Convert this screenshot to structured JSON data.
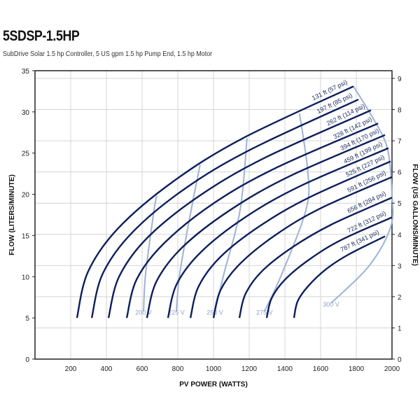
{
  "title": "5SDSP-1.5HP",
  "subtitle": "SubDrive Solar 1.5 hp Controller, 5 US gpm 1.5 hp Pump End, 1.5 hp Motor",
  "colors": {
    "curve": "#0d1f5c",
    "voltage": "#9fb2d4",
    "grid": "#d4d4d4"
  },
  "chart_data": {
    "type": "line",
    "title": "5SDSP-1.5HP",
    "xlabel": "PV POWER (WATTS)",
    "ylabel": "FLOW (LITERS/MINUTE)",
    "y2label": "FLOW (US GALLONS/MINUTE)",
    "xlim": [
      0,
      2000
    ],
    "ylim": [
      0,
      35
    ],
    "y2lim": [
      0,
      9.25
    ],
    "xticks": [
      "200",
      "400",
      "600",
      "800",
      "1000",
      "1200",
      "1400",
      "1600",
      "1800",
      "2000"
    ],
    "yticks": [
      "0",
      "5",
      "10",
      "15",
      "20",
      "25",
      "30",
      "35"
    ],
    "y2ticks": [
      "0",
      "1",
      "2",
      "3",
      "4",
      "5",
      "6",
      "7",
      "8",
      "9"
    ],
    "grid": true,
    "head_curves": [
      {
        "name": "131 ft (57 psi)",
        "x": [
          235,
          297,
          467,
          777,
          1164,
          1784
        ],
        "y": [
          5,
          10.6,
          15.9,
          21.6,
          26.8,
          33.1
        ]
      },
      {
        "name": "197 ft (85 psi)",
        "x": [
          318,
          378,
          542,
          841,
          1214,
          1812
        ],
        "y": [
          5,
          10.3,
          15.3,
          20.7,
          25.5,
          31.5
        ]
      },
      {
        "name": "262 ft (114 psi)",
        "x": [
          412,
          471,
          633,
          927,
          1294,
          1882
        ],
        "y": [
          5,
          10.0,
          14.8,
          19.9,
          24.5,
          30.2
        ]
      },
      {
        "name": "328 ft (142 psi)",
        "x": [
          514,
          570,
          725,
          1007,
          1359,
          1922
        ],
        "y": [
          5,
          9.7,
          14.1,
          19.0,
          23.3,
          28.6
        ]
      },
      {
        "name": "394 ft (170 psi)",
        "x": [
          627,
          680,
          827,
          1094,
          1427,
          1961
        ],
        "y": [
          5,
          9.4,
          13.6,
          18.1,
          22.2,
          27.2
        ]
      },
      {
        "name": "459 ft (199 psi)",
        "x": [
          745,
          794,
          930,
          1177,
          1486,
          1980
        ],
        "y": [
          5,
          9.1,
          13.0,
          17.2,
          21.0,
          25.6
        ]
      },
      {
        "name": "525 ft (227 psi)",
        "x": [
          871,
          916,
          1039,
          1263,
          1544,
          1992
        ],
        "y": [
          5,
          8.8,
          12.4,
          16.2,
          19.7,
          24.0
        ]
      },
      {
        "name": "591 ft (256 psi)",
        "x": [
          1000,
          1040,
          1150,
          1350,
          1600,
          2000
        ],
        "y": [
          5,
          8.4,
          11.6,
          15.1,
          18.3,
          22.1
        ]
      },
      {
        "name": "656 ft (284 psi)",
        "x": [
          1145,
          1179,
          1273,
          1444,
          1658,
          2000
        ],
        "y": [
          5,
          7.9,
          10.7,
          13.6,
          16.3,
          19.6
        ]
      },
      {
        "name": "722 ft (312 psi)",
        "x": [
          1298,
          1326,
          1403,
          1544,
          1719,
          2000
        ],
        "y": [
          5,
          7.4,
          9.7,
          12.2,
          14.5,
          17.2
        ]
      },
      {
        "name": "787 ft (341 psi)",
        "x": [
          1451,
          1471,
          1528,
          1630,
          1757,
          1961
        ],
        "y": [
          5,
          7.0,
          8.8,
          10.9,
          12.7,
          14.9
        ]
      }
    ],
    "voltage_lines": [
      {
        "name": "200 V",
        "x": [
          682,
          667,
          620,
          608
        ],
        "y": [
          19.8,
          18.1,
          10.4,
          5.8
        ]
      },
      {
        "name": "225 V",
        "x": [
          925,
          875,
          811,
          792
        ],
        "y": [
          23.6,
          18.1,
          10.4,
          5.8
        ]
      },
      {
        "name": "250 V",
        "x": [
          1188,
          1149,
          1059,
          1008
        ],
        "y": [
          26.8,
          18.1,
          10.4,
          5.8
        ]
      },
      {
        "name": "275 V",
        "x": [
          1482,
          1529,
          1518,
          1384,
          1286
        ],
        "y": [
          29.8,
          22.6,
          18.1,
          10.4,
          5.8
        ]
      },
      {
        "name": "300 V",
        "x": [
          1784,
          1900,
          1975,
          2000,
          1992,
          1871,
          1659
        ],
        "y": [
          33.1,
          29,
          25.5,
          20,
          16,
          11.3,
          6.8
        ]
      }
    ]
  }
}
